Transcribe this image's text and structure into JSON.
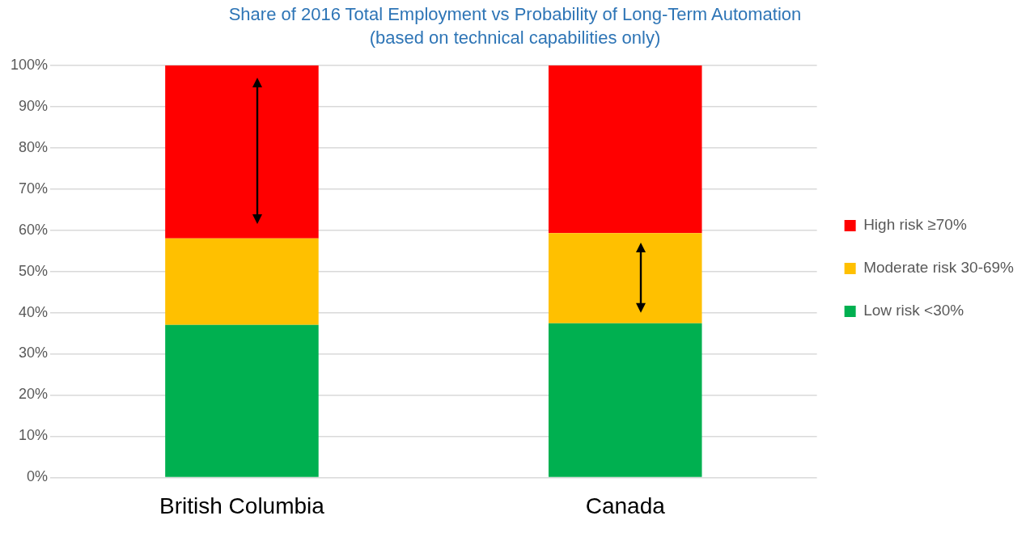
{
  "chart_data": {
    "type": "bar",
    "title": "Share of 2016 Total Employment vs Probability of Long-Term Automation",
    "subtitle": "(based on technical capabilities only)",
    "categories": [
      "British Columbia",
      "Canada"
    ],
    "series": [
      {
        "name": "Low risk <30%",
        "color": "#00b050",
        "values": [
          37,
          37.4
        ]
      },
      {
        "name": "Moderate risk 30-69%",
        "color": "#ffc000",
        "values": [
          21,
          21.9
        ]
      },
      {
        "name": "High risk ≥70%",
        "color": "#ff0000",
        "values": [
          42,
          40.7
        ]
      }
    ],
    "stacked": true,
    "ylim": [
      0,
      100
    ],
    "yticks": [
      {
        "value": 0,
        "label": "0%"
      },
      {
        "value": 10,
        "label": "10%"
      },
      {
        "value": 20,
        "label": "20%"
      },
      {
        "value": 30,
        "label": "30%"
      },
      {
        "value": 40,
        "label": "40%"
      },
      {
        "value": 50,
        "label": "50%"
      },
      {
        "value": 60,
        "label": "60%"
      },
      {
        "value": 70,
        "label": "70%"
      },
      {
        "value": 80,
        "label": "80%"
      },
      {
        "value": 90,
        "label": "90%"
      },
      {
        "value": 100,
        "label": "100%"
      }
    ],
    "grid": "y",
    "legend": "right"
  }
}
